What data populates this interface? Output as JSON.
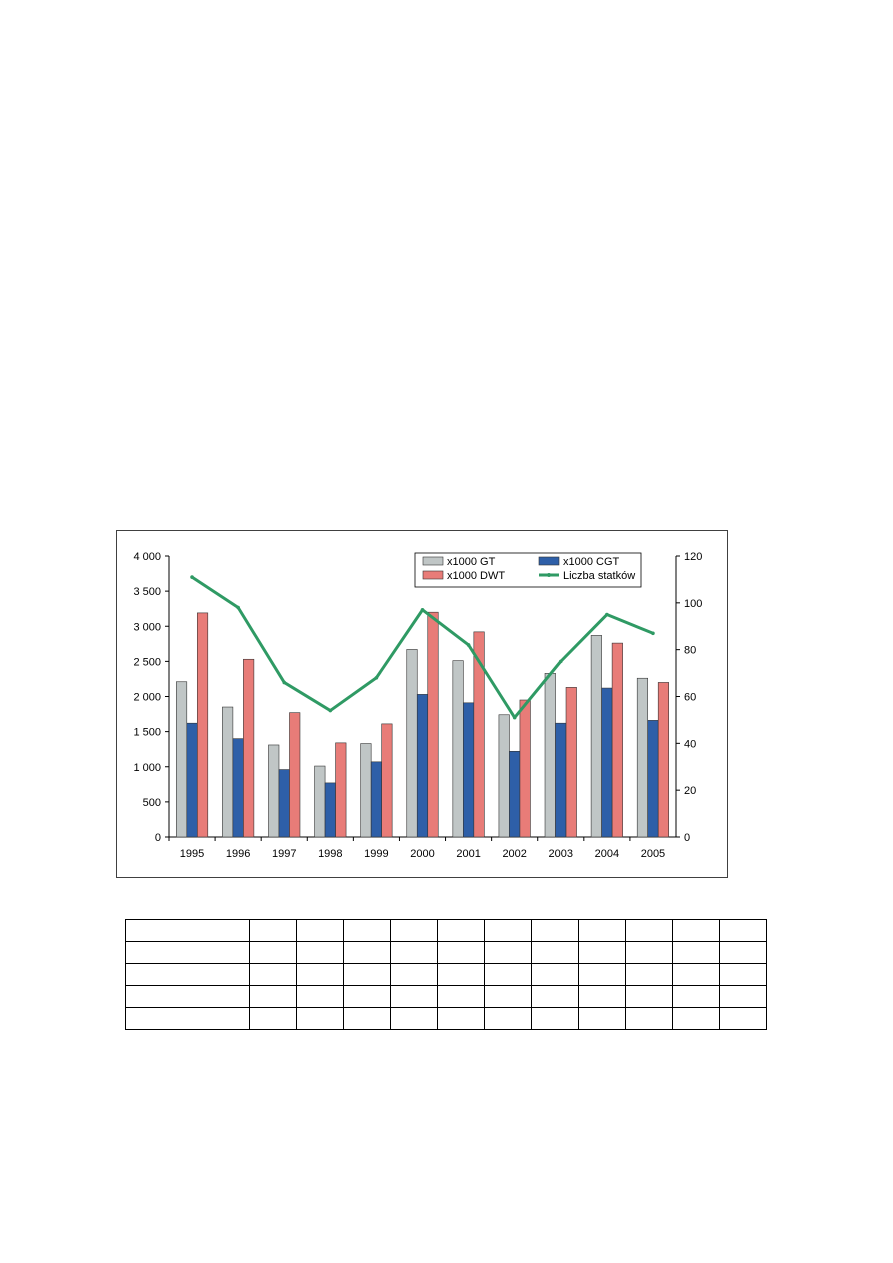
{
  "chart_data": {
    "type": "bar",
    "categories": [
      "1995",
      "1996",
      "1997",
      "1998",
      "1999",
      "2000",
      "2001",
      "2002",
      "2003",
      "2004",
      "2005"
    ],
    "series": [
      {
        "name": "x1000 GT",
        "type": "bar",
        "axis": "left",
        "color": "#c0c6c6",
        "values": [
          2210,
          1850,
          1310,
          1010,
          1330,
          2670,
          2510,
          1740,
          2330,
          2870,
          2260
        ]
      },
      {
        "name": "x1000 CGT",
        "type": "bar",
        "axis": "left",
        "color": "#2e5fa8",
        "values": [
          1620,
          1400,
          960,
          770,
          1070,
          2030,
          1910,
          1220,
          1620,
          2120,
          1660
        ]
      },
      {
        "name": "x1000 DWT",
        "type": "bar",
        "axis": "left",
        "color": "#e87c78",
        "values": [
          3190,
          2530,
          1770,
          1340,
          1610,
          3200,
          2920,
          1950,
          2130,
          2760,
          2200
        ]
      },
      {
        "name": "Liczba statków",
        "type": "line",
        "axis": "right",
        "color": "#2f9a64",
        "values": [
          111,
          98,
          66,
          54,
          68,
          97,
          82,
          51,
          75,
          95,
          87
        ]
      }
    ],
    "y_left": {
      "lim": [
        0,
        4000
      ],
      "ticks": [
        "0",
        "500",
        "1 000",
        "1 500",
        "2 000",
        "2 500",
        "3 000",
        "3 500",
        "4 000"
      ]
    },
    "y_right": {
      "lim": [
        0,
        120
      ],
      "ticks": [
        "0",
        "20",
        "40",
        "60",
        "80",
        "100",
        "120"
      ]
    },
    "grid": false,
    "legend": {
      "placement": "top-right",
      "columns": 2
    }
  },
  "table": {
    "rows": 5,
    "cols": 12,
    "cells": [
      [
        "",
        "",
        "",
        "",
        "",
        "",
        "",
        "",
        "",
        "",
        "",
        ""
      ],
      [
        "",
        "",
        "",
        "",
        "",
        "",
        "",
        "",
        "",
        "",
        "",
        ""
      ],
      [
        "",
        "",
        "",
        "",
        "",
        "",
        "",
        "",
        "",
        "",
        "",
        ""
      ],
      [
        "",
        "",
        "",
        "",
        "",
        "",
        "",
        "",
        "",
        "",
        "",
        ""
      ],
      [
        "",
        "",
        "",
        "",
        "",
        "",
        "",
        "",
        "",
        "",
        "",
        ""
      ]
    ]
  }
}
